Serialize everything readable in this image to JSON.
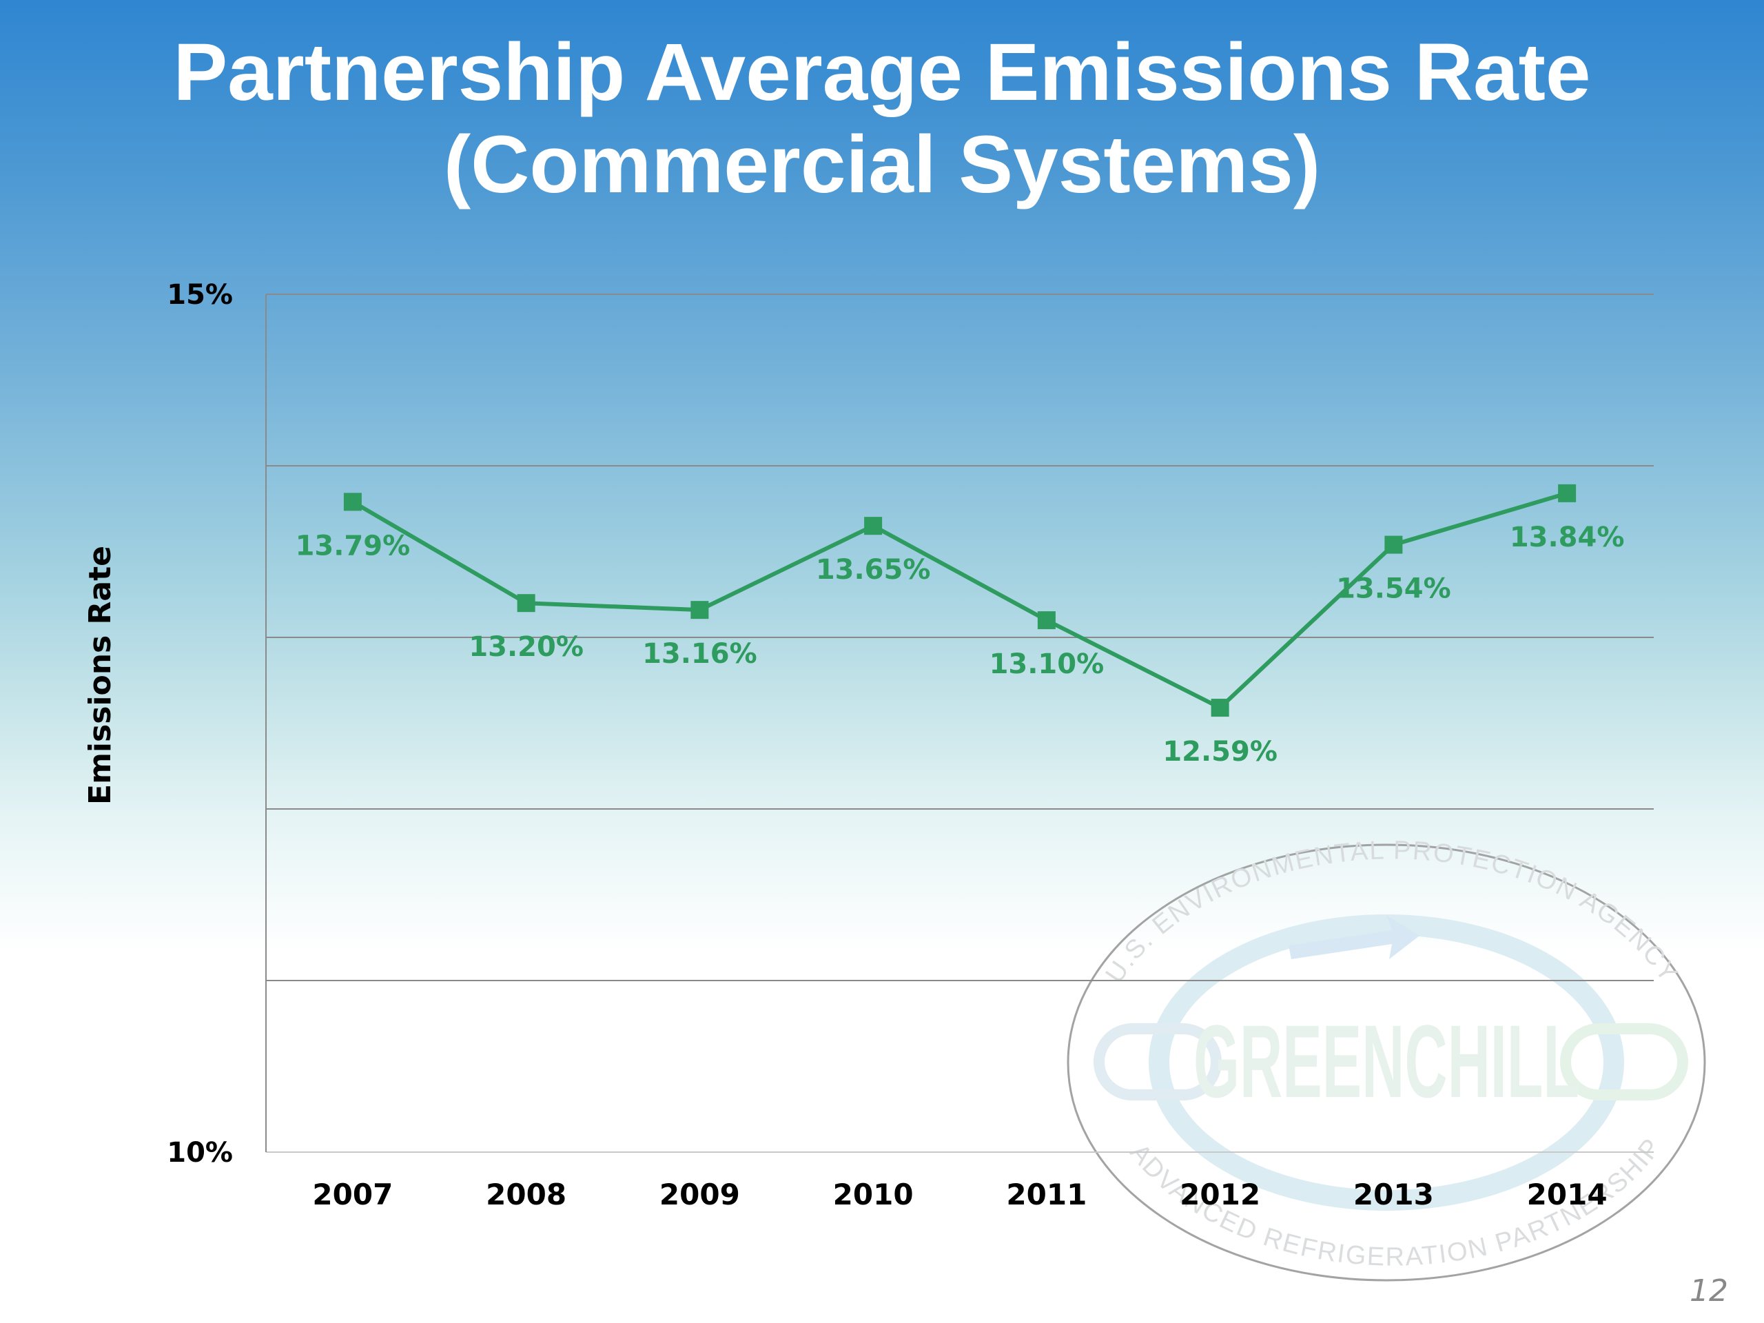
{
  "slide": {
    "title_line1": "Partnership Average Emissions Rate",
    "title_line2": "(Commercial Systems)",
    "page_number": "12"
  },
  "logo": {
    "name": "GREENCHILL",
    "top_text": "U.S. ENVIRONMENTAL PROTECTION AGENCY",
    "bottom_text": "ADVANCED REFRIGERATION PARTNERSHIP"
  },
  "chart_data": {
    "type": "line",
    "title": "",
    "xlabel": "",
    "ylabel": "Emissions Rate",
    "categories": [
      "2007",
      "2008",
      "2009",
      "2010",
      "2011",
      "2012",
      "2013",
      "2014"
    ],
    "series": [
      {
        "values": [
          13.79,
          13.2,
          13.16,
          13.65,
          13.1,
          12.59,
          13.54,
          13.84
        ]
      }
    ],
    "data_labels": [
      "13.79%",
      "13.20%",
      "13.16%",
      "13.65%",
      "13.10%",
      "12.59%",
      "13.54%",
      "13.84%"
    ],
    "ylim": [
      10,
      15
    ],
    "y_tick_labels": [
      {
        "value": 15,
        "label": "15%"
      },
      {
        "value": 10,
        "label": "10%"
      }
    ],
    "gridlines": [
      10,
      11,
      12,
      13,
      14,
      15
    ],
    "grid": true,
    "legend": "none",
    "line_color": "#2e9b5f"
  }
}
